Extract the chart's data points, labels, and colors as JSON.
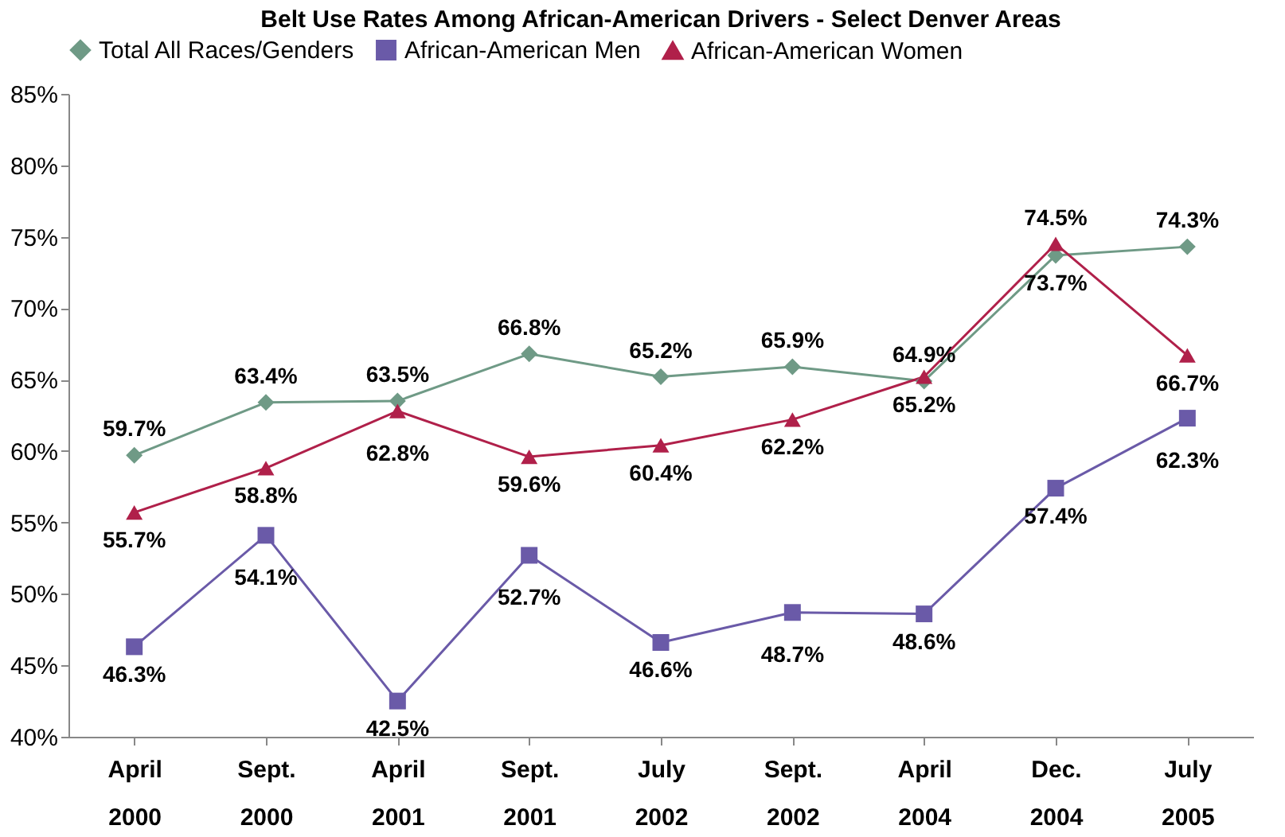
{
  "chart_data": {
    "type": "line",
    "title": "Belt Use Rates Among African-American Drivers - Select Denver Areas",
    "categories": [
      "April 2000",
      "Sept. 2000",
      "April 2001",
      "Sept. 2001",
      "July 2002",
      "Sept. 2002",
      "April 2004",
      "Dec. 2004",
      "July 2005"
    ],
    "series": [
      {
        "name": "Total All Races/Genders",
        "color": "#6f9a86",
        "marker": "diamond",
        "values": [
          59.7,
          63.4,
          63.5,
          66.8,
          65.2,
          65.9,
          64.9,
          73.7,
          74.3
        ],
        "value_labels": [
          "59.7%",
          "63.4%",
          "63.5%",
          "66.8%",
          "65.2%",
          "65.9%",
          "64.9%",
          "73.7%",
          "74.3%"
        ]
      },
      {
        "name": "African-American Men",
        "color": "#6a5aa8",
        "marker": "square",
        "values": [
          46.3,
          54.1,
          42.5,
          52.7,
          46.6,
          48.7,
          48.6,
          57.4,
          62.3
        ],
        "value_labels": [
          "46.3%",
          "54.1%",
          "42.5%",
          "52.7%",
          "46.6%",
          "48.7%",
          "48.6%",
          "57.4%",
          "62.3%"
        ]
      },
      {
        "name": "African-American Women",
        "color": "#b0204a",
        "marker": "triangle",
        "values": [
          55.7,
          58.8,
          62.8,
          59.6,
          60.4,
          62.2,
          65.2,
          74.5,
          66.7
        ],
        "value_labels": [
          "55.7%",
          "58.8%",
          "62.8%",
          "59.6%",
          "60.4%",
          "62.2%",
          "65.2%",
          "74.5%",
          "66.7%"
        ]
      }
    ],
    "ylim": [
      40,
      85
    ],
    "yticks": [
      {
        "value": 40,
        "label": "40%"
      },
      {
        "value": 45,
        "label": "45%"
      },
      {
        "value": 50,
        "label": "50%"
      },
      {
        "value": 55,
        "label": "55%"
      },
      {
        "value": 60,
        "label": "60%"
      },
      {
        "value": 65,
        "label": "65%"
      },
      {
        "value": 70,
        "label": "70%"
      },
      {
        "value": 75,
        "label": "75%"
      },
      {
        "value": 80,
        "label": "80%"
      },
      {
        "value": 85,
        "label": "85%"
      }
    ],
    "grid": false,
    "legend": "top",
    "line_style": "solid"
  }
}
